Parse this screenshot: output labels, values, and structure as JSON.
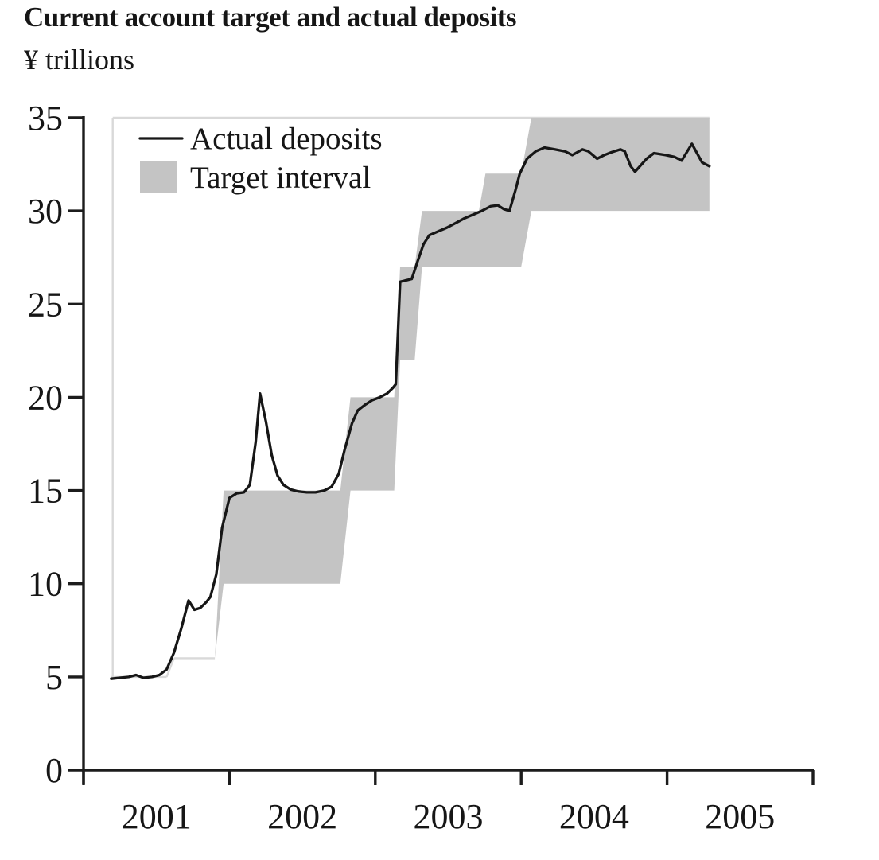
{
  "page": {
    "title": "Current account target and actual deposits",
    "unit_label": "¥ trillions"
  },
  "legend": {
    "line_label": "Actual deposits",
    "band_label": "Target interval"
  },
  "colors": {
    "background": "#ffffff",
    "text": "#161616",
    "axis": "#1c1c1c",
    "line": "#161616",
    "band": "#c4c4c4",
    "faint": "#d9d9d9"
  },
  "chart_data": {
    "type": "line",
    "title": "Current account target and actual deposits",
    "ylabel": "¥ trillions",
    "xlabel": "",
    "xlim": [
      2001,
      2006
    ],
    "ylim": [
      0,
      35
    ],
    "grid": false,
    "legend_position": "top-left-inside",
    "y_ticks": [
      0,
      5,
      10,
      15,
      20,
      25,
      30,
      35
    ],
    "x_ticks": {
      "positions": [
        2001,
        2002,
        2003,
        2004,
        2005,
        2006
      ],
      "year_labels": [
        "2001",
        "2002",
        "2003",
        "2004",
        "2005"
      ],
      "labels_centered_between_ticks": true
    },
    "series": [
      {
        "name": "Actual deposits",
        "style": "line",
        "points": [
          [
            2001.19,
            4.9
          ],
          [
            2001.25,
            4.95
          ],
          [
            2001.31,
            5.0
          ],
          [
            2001.36,
            5.1
          ],
          [
            2001.41,
            4.95
          ],
          [
            2001.47,
            5.0
          ],
          [
            2001.52,
            5.1
          ],
          [
            2001.57,
            5.4
          ],
          [
            2001.62,
            6.3
          ],
          [
            2001.67,
            7.6
          ],
          [
            2001.72,
            9.1
          ],
          [
            2001.76,
            8.6
          ],
          [
            2001.8,
            8.7
          ],
          [
            2001.84,
            9.0
          ],
          [
            2001.87,
            9.3
          ],
          [
            2001.91,
            10.5
          ],
          [
            2001.95,
            13.0
          ],
          [
            2002.0,
            14.6
          ],
          [
            2002.05,
            14.85
          ],
          [
            2002.1,
            14.9
          ],
          [
            2002.14,
            15.3
          ],
          [
            2002.18,
            17.6
          ],
          [
            2002.21,
            20.2
          ],
          [
            2002.25,
            18.7
          ],
          [
            2002.29,
            16.9
          ],
          [
            2002.33,
            15.8
          ],
          [
            2002.37,
            15.3
          ],
          [
            2002.42,
            15.05
          ],
          [
            2002.47,
            14.95
          ],
          [
            2002.53,
            14.9
          ],
          [
            2002.59,
            14.9
          ],
          [
            2002.65,
            15.0
          ],
          [
            2002.7,
            15.2
          ],
          [
            2002.75,
            15.9
          ],
          [
            2002.79,
            17.2
          ],
          [
            2002.84,
            18.6
          ],
          [
            2002.88,
            19.3
          ],
          [
            2002.93,
            19.6
          ],
          [
            2002.98,
            19.85
          ],
          [
            2003.03,
            20.0
          ],
          [
            2003.08,
            20.2
          ],
          [
            2003.12,
            20.5
          ],
          [
            2003.14,
            20.7
          ],
          [
            2003.17,
            26.2
          ],
          [
            2003.25,
            26.35
          ],
          [
            2003.29,
            27.3
          ],
          [
            2003.33,
            28.2
          ],
          [
            2003.37,
            28.7
          ],
          [
            2003.43,
            28.9
          ],
          [
            2003.49,
            29.1
          ],
          [
            2003.55,
            29.35
          ],
          [
            2003.61,
            29.6
          ],
          [
            2003.67,
            29.8
          ],
          [
            2003.73,
            30.0
          ],
          [
            2003.79,
            30.25
          ],
          [
            2003.84,
            30.3
          ],
          [
            2003.88,
            30.1
          ],
          [
            2003.92,
            30.0
          ],
          [
            2003.96,
            31.1
          ],
          [
            2003.99,
            32.0
          ],
          [
            2004.04,
            32.8
          ],
          [
            2004.1,
            33.2
          ],
          [
            2004.16,
            33.4
          ],
          [
            2004.23,
            33.3
          ],
          [
            2004.3,
            33.2
          ],
          [
            2004.35,
            33.0
          ],
          [
            2004.42,
            33.3
          ],
          [
            2004.46,
            33.2
          ],
          [
            2004.52,
            32.8
          ],
          [
            2004.57,
            33.0
          ],
          [
            2004.62,
            33.15
          ],
          [
            2004.68,
            33.3
          ],
          [
            2004.71,
            33.2
          ],
          [
            2004.75,
            32.4
          ],
          [
            2004.78,
            32.1
          ],
          [
            2004.86,
            32.8
          ],
          [
            2004.91,
            33.1
          ],
          [
            2004.99,
            33.0
          ],
          [
            2005.05,
            32.9
          ],
          [
            2005.1,
            32.7
          ],
          [
            2005.17,
            33.6
          ],
          [
            2005.24,
            32.6
          ],
          [
            2005.29,
            32.4
          ]
        ]
      },
      {
        "name": "Target interval",
        "style": "band",
        "segments": [
          {
            "from": 2001.9,
            "to": 2001.9,
            "low": 6,
            "high": 6
          },
          {
            "from": 2001.96,
            "to": 2002.76,
            "low": 10,
            "high": 15
          },
          {
            "from": 2002.83,
            "to": 2003.13,
            "low": 15,
            "high": 20
          },
          {
            "from": 2003.17,
            "to": 2003.27,
            "low": 22,
            "high": 27
          },
          {
            "from": 2003.32,
            "to": 2003.71,
            "low": 27,
            "high": 30
          },
          {
            "from": 2003.755,
            "to": 2004.0,
            "low": 27,
            "high": 32
          },
          {
            "from": 2004.07,
            "to": 2005.29,
            "low": 30,
            "high": 35
          }
        ]
      }
    ],
    "target_outline": [
      {
        "x1": 2001.2,
        "y1": 35,
        "x2": 2005.29,
        "y2": 35
      },
      {
        "x1": 2001.2,
        "y1": 35,
        "x2": 2001.2,
        "y2": 4.9
      },
      {
        "x1": 2001.19,
        "y1": 5,
        "x2": 2001.57,
        "y2": 5
      },
      {
        "x1": 2001.57,
        "y1": 5,
        "x2": 2001.62,
        "y2": 6
      },
      {
        "x1": 2001.62,
        "y1": 6,
        "x2": 2001.9,
        "y2": 6
      }
    ]
  }
}
